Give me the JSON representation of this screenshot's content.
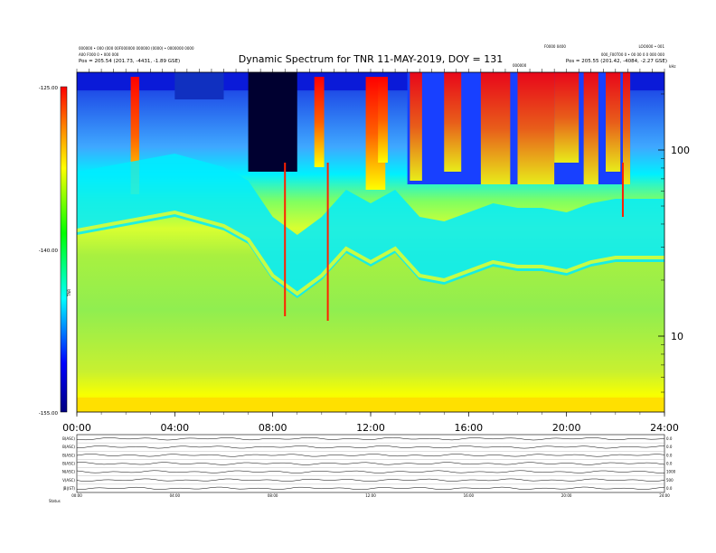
{
  "header": {
    "title": "Dynamic Spectrum for TNR 11-MAY-2019, DOY = 131",
    "left_info": [
      "000000 • 000 (000 00F000000 000000 (0000) • 0000000 0000",
      "A00 F000 0 • 000 000",
      "Pos = 205.54 (201.73, -4431, -1.89 GSE)"
    ],
    "right_info": [
      "LOO000 • 001",
      "000_F00T00 0 • 00 00 0 0 000 000",
      "Pos = 205.55 (201.42, -4084, -2.27 GSE)"
    ],
    "center_small": "F0000 0400",
    "mid_small": "000000"
  },
  "chart_data": {
    "type": "heatmap",
    "title": "Dynamic Spectrum for TNR 11-MAY-2019, DOY = 131",
    "x_ticks": [
      "00:00",
      "04:00",
      "08:00",
      "12:00",
      "16:00",
      "20:00",
      "24:00"
    ],
    "x_range_hours": [
      0,
      24
    ],
    "y_right_ticks": [
      100,
      10
    ],
    "y_right_top_label": "kHz",
    "y_right_scale": "log",
    "colorbar": {
      "ticks": [
        "-125.00",
        "-140.00",
        "-155.00"
      ],
      "range": [
        -155,
        -125
      ],
      "label": "TNR",
      "colors": [
        "#000080",
        "#0000ff",
        "#00ffff",
        "#00ff00",
        "#ffff00",
        "#ff8000",
        "#ff0000"
      ]
    },
    "bottom_panel": {
      "row_labels": [
        "B(ASC)",
        "B(ASC)",
        "B(ASC)",
        "B(ASC)",
        "N(ASC)",
        "V(ASC)",
        "|B|(ST)"
      ],
      "right_ticks": [
        "0.0",
        "0.0",
        "0.0",
        "0.0",
        "1000",
        "500",
        "0.0"
      ],
      "x_ticks": [
        "00:00",
        "04:00",
        "08:00",
        "12:00",
        "16:00",
        "20:00",
        "24:00"
      ],
      "footer_label": "Status"
    }
  }
}
